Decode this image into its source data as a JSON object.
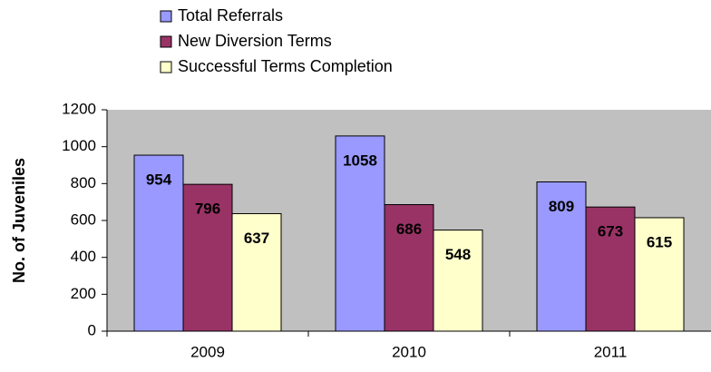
{
  "chart_data": {
    "type": "bar",
    "categories": [
      "2009",
      "2010",
      "2011"
    ],
    "series": [
      {
        "name": "Total Referrals",
        "color": "#9999ff",
        "values": [
          954,
          1058,
          809
        ]
      },
      {
        "name": "New Diversion Terms",
        "color": "#993366",
        "values": [
          796,
          686,
          673
        ]
      },
      {
        "name": "Successful Terms Completion",
        "color": "#ffffcc",
        "values": [
          637,
          548,
          615
        ]
      }
    ],
    "ylabel": "No. of Juveniles",
    "ylim": [
      0,
      1200
    ],
    "yticks": [
      0,
      200,
      400,
      600,
      800,
      1000,
      1200
    ],
    "grid": false,
    "legend": "top-left",
    "background": "#c0c0c0"
  }
}
